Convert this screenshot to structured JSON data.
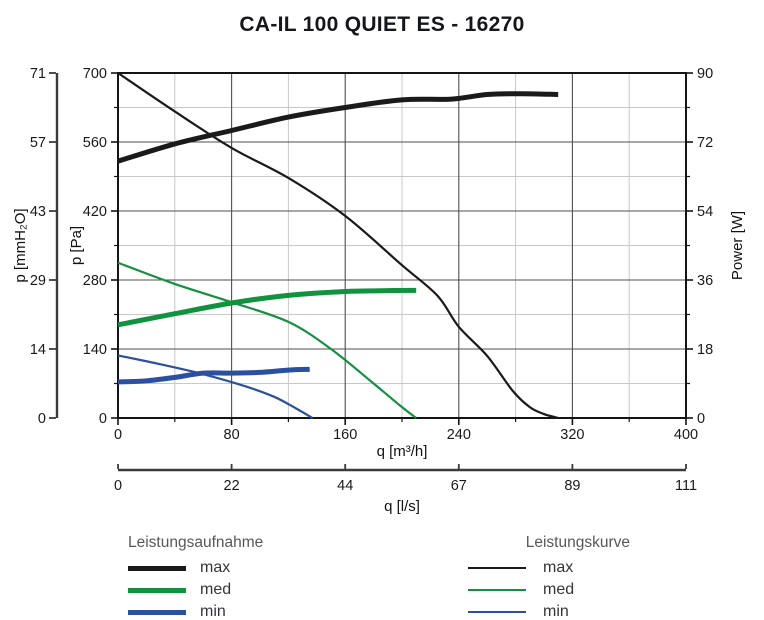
{
  "colors": {
    "max": "#1a1a1a",
    "med": "#10923f",
    "min": "#2a50a1",
    "frame": "#141414",
    "grid_major": "#4f4f4f",
    "grid_minor": "#c8c8c8",
    "axis_secondary": "#3a3b3d",
    "tick_text": "#1a1a1a"
  },
  "chart_data": {
    "type": "line",
    "title": "CA-IL 100 QUIET ES - 16270",
    "grid": "major+minor",
    "axes": {
      "x_primary": {
        "label": "q [m³/h]",
        "min": 0,
        "max": 400,
        "ticks": [
          0,
          80,
          160,
          240,
          320,
          400
        ],
        "minor_step": 40
      },
      "x_secondary": {
        "label": "q [l/s]",
        "ticks": [
          0,
          22,
          44,
          67,
          89,
          111
        ]
      },
      "y_pa": {
        "label": "p [Pa]",
        "min": 0,
        "max": 700,
        "ticks": [
          0,
          140,
          280,
          420,
          560,
          700
        ],
        "minor_step": 70
      },
      "y_mmh2o": {
        "label": "p [mmH₂O]",
        "ticks": [
          0,
          14,
          29,
          43,
          57,
          71
        ]
      },
      "y_power": {
        "label": "Power [W]",
        "min": 0,
        "max": 90,
        "ticks": [
          0,
          18,
          36,
          54,
          72,
          90
        ],
        "minor_step": 9
      }
    },
    "series": [
      {
        "group": "Leistungskurve",
        "name": "max",
        "axis": "y_pa",
        "style": "thin",
        "color_key": "max",
        "points": [
          [
            0,
            700
          ],
          [
            40,
            622
          ],
          [
            80,
            548
          ],
          [
            120,
            487
          ],
          [
            160,
            410
          ],
          [
            200,
            310
          ],
          [
            225,
            248
          ],
          [
            240,
            185
          ],
          [
            260,
            126
          ],
          [
            278,
            55
          ],
          [
            290,
            22
          ],
          [
            300,
            8
          ],
          [
            310,
            0
          ]
        ]
      },
      {
        "group": "Leistungskurve",
        "name": "med",
        "axis": "y_pa",
        "style": "thin",
        "color_key": "med",
        "points": [
          [
            0,
            315
          ],
          [
            40,
            272
          ],
          [
            80,
            235
          ],
          [
            120,
            195
          ],
          [
            150,
            140
          ],
          [
            180,
            70
          ],
          [
            200,
            22
          ],
          [
            210,
            0
          ]
        ]
      },
      {
        "group": "Leistungskurve",
        "name": "min",
        "axis": "y_pa",
        "style": "thin",
        "color_key": "min",
        "points": [
          [
            0,
            127
          ],
          [
            30,
            109
          ],
          [
            60,
            89
          ],
          [
            90,
            64
          ],
          [
            110,
            43
          ],
          [
            125,
            20
          ],
          [
            137,
            0
          ]
        ]
      },
      {
        "group": "Leistungsaufnahme",
        "name": "max",
        "axis": "y_power",
        "style": "thick",
        "color_key": "max",
        "points": [
          [
            0,
            67
          ],
          [
            40,
            71.5
          ],
          [
            80,
            75
          ],
          [
            120,
            78.5
          ],
          [
            160,
            81
          ],
          [
            200,
            83
          ],
          [
            235,
            83.2
          ],
          [
            260,
            84.4
          ],
          [
            285,
            84.6
          ],
          [
            310,
            84.4
          ]
        ]
      },
      {
        "group": "Leistungsaufnahme",
        "name": "med",
        "axis": "y_power",
        "style": "thick",
        "color_key": "med",
        "points": [
          [
            0,
            24.3
          ],
          [
            40,
            27.2
          ],
          [
            80,
            30
          ],
          [
            120,
            32
          ],
          [
            160,
            33
          ],
          [
            185,
            33.2
          ],
          [
            210,
            33.3
          ]
        ]
      },
      {
        "group": "Leistungsaufnahme",
        "name": "min",
        "axis": "y_power",
        "style": "thick",
        "color_key": "min",
        "points": [
          [
            0,
            9.4
          ],
          [
            20,
            9.7
          ],
          [
            40,
            10.6
          ],
          [
            60,
            11.7
          ],
          [
            80,
            11.7
          ],
          [
            100,
            11.9
          ],
          [
            120,
            12.5
          ],
          [
            135,
            12.7
          ]
        ]
      }
    ]
  },
  "legend": {
    "aufnahme": {
      "title": "Leistungsaufnahme",
      "items": [
        {
          "label": "max",
          "key": "max"
        },
        {
          "label": "med",
          "key": "med"
        },
        {
          "label": "min",
          "key": "min"
        }
      ]
    },
    "kurve": {
      "title": "Leistungskurve",
      "items": [
        {
          "label": "max",
          "key": "max"
        },
        {
          "label": "med",
          "key": "med"
        },
        {
          "label": "min",
          "key": "min"
        }
      ]
    }
  }
}
